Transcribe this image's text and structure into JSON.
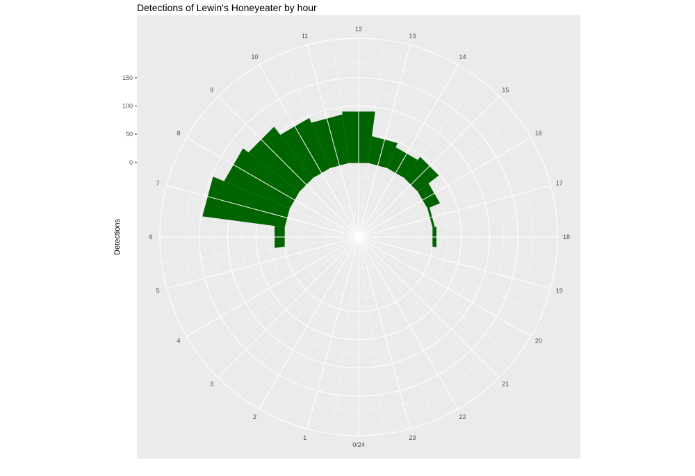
{
  "chart_data": {
    "type": "bar",
    "coord": "polar",
    "title": "Detections of Lewin's Honeyeater by hour",
    "ylabel": "Detections",
    "xlabel": "",
    "categories": [
      "0/24",
      "1",
      "2",
      "3",
      "4",
      "5",
      "6",
      "7",
      "8",
      "9",
      "10",
      "11",
      "12",
      "13",
      "14",
      "15",
      "16",
      "17",
      "18",
      "19",
      "20",
      "21",
      "22",
      "23"
    ],
    "values": [
      0,
      0,
      0,
      0,
      0,
      0,
      18,
      147,
      126,
      114,
      96,
      87,
      92,
      48,
      40,
      47,
      24,
      4,
      7,
      0,
      0,
      0,
      0,
      0
    ],
    "hour_labels": [
      "0/24",
      "1",
      "2",
      "3",
      "4",
      "5",
      "6",
      "7",
      "8",
      "9",
      "10",
      "11",
      "12",
      "13",
      "14",
      "15",
      "16",
      "17",
      "18",
      "19",
      "20",
      "21",
      "22",
      "23"
    ],
    "y_ticks": [
      "0",
      "50",
      "100",
      "150"
    ],
    "y_tick_values": [
      0,
      50,
      100,
      150
    ],
    "ylim": [
      -132,
      220
    ],
    "bar_color": "#006400",
    "panel_color": "#ebebeb",
    "grid_color": "#ffffff",
    "legend": "none"
  }
}
